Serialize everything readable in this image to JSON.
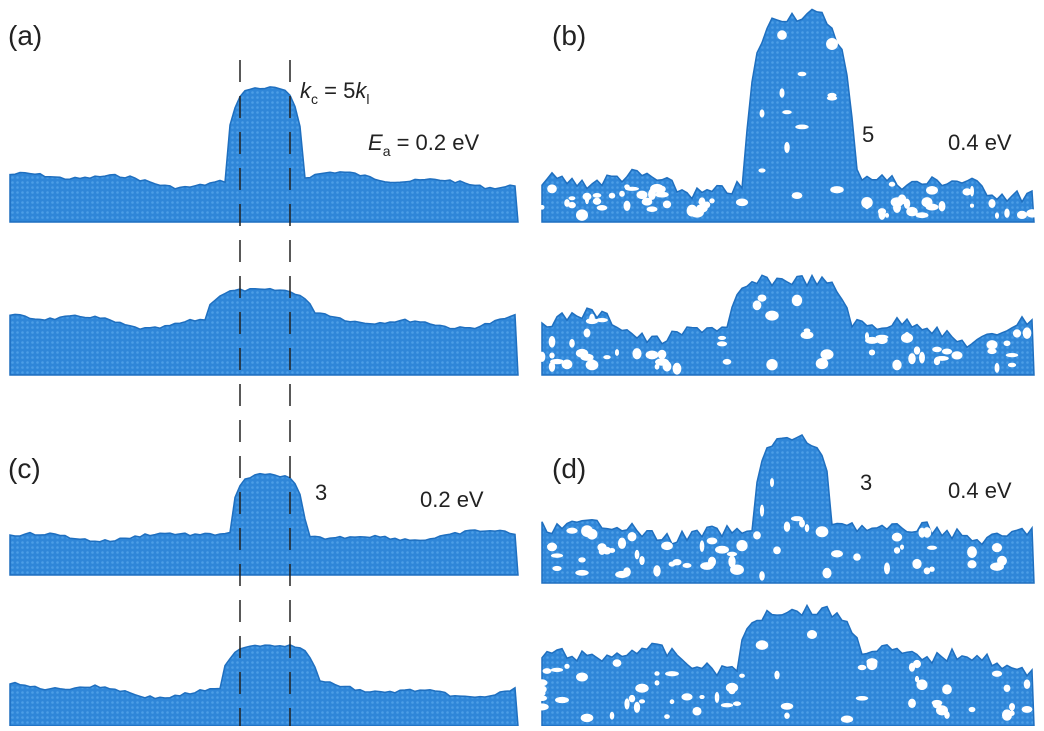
{
  "panels": [
    {
      "label": "(a)",
      "ratio_parts": [
        "k",
        "c",
        " = 5",
        "k",
        "l"
      ],
      "energy_parts": [
        "E",
        "a",
        " = 0.2 eV"
      ]
    },
    {
      "label": "(b)",
      "ratio": "5",
      "energy": "0.4 eV"
    },
    {
      "label": "(c)",
      "ratio": "3",
      "energy": "0.2 eV"
    },
    {
      "label": "(d)",
      "ratio": "3",
      "energy": "0.4 eV"
    }
  ]
}
